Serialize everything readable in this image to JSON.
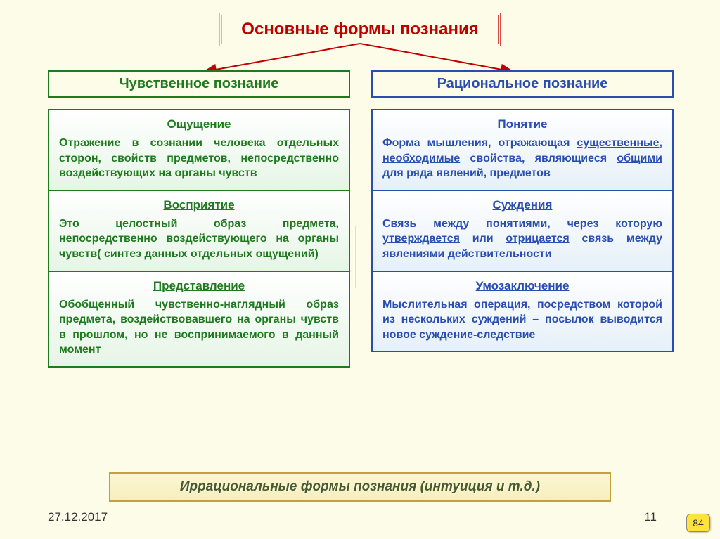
{
  "title": "Основные формы познания",
  "colors": {
    "bg": "#fdfce8",
    "red": "#c00000",
    "green": "#1f7a1f",
    "blue": "#2a4eb0",
    "gold": "#bfa23a"
  },
  "left": {
    "header": "Чувственное познание",
    "cells": [
      {
        "title": "Ощущение",
        "html": "Отражение в сознании человека отдельных сторон, свойств предметов, непосредственно воздействующих на органы чувств"
      },
      {
        "title": "Восприятие",
        "html": "Это <span class='u'>целостный</span> образ предмета, непосредственно воздействующего на органы чувств( синтез данных отдельных ощущений)"
      },
      {
        "title": "Представление",
        "html": "Обобщенный чувственно-наглядный образ предмета, воздействовавшего на органы чувств в прошлом, но не воспринимаемого в данный момент"
      }
    ]
  },
  "right": {
    "header": "Рациональное познание",
    "cells": [
      {
        "title": "Понятие",
        "html": "Форма мышления, отражающая <span class='u'>существенные</span>, <span class='u'>необходимые</span> свойства, являющиеся <span class='u'>общими</span> для ряда явлений, предметов"
      },
      {
        "title": "Суждения",
        "html": "Связь между понятиями, через которую <span class='u'>утверждается</span> или <span class='u'>отрицается</span> связь между явлениями действительности"
      },
      {
        "title": "Умозаключение",
        "html": "Мыслительная операция, посредством которой из нескольких суждений – посылок выводится новое суждение-следствие"
      }
    ]
  },
  "footer": "Иррациональные формы познания (интуиция и т.д.)",
  "date": "27.12.2017",
  "page": "11",
  "badge": "84"
}
